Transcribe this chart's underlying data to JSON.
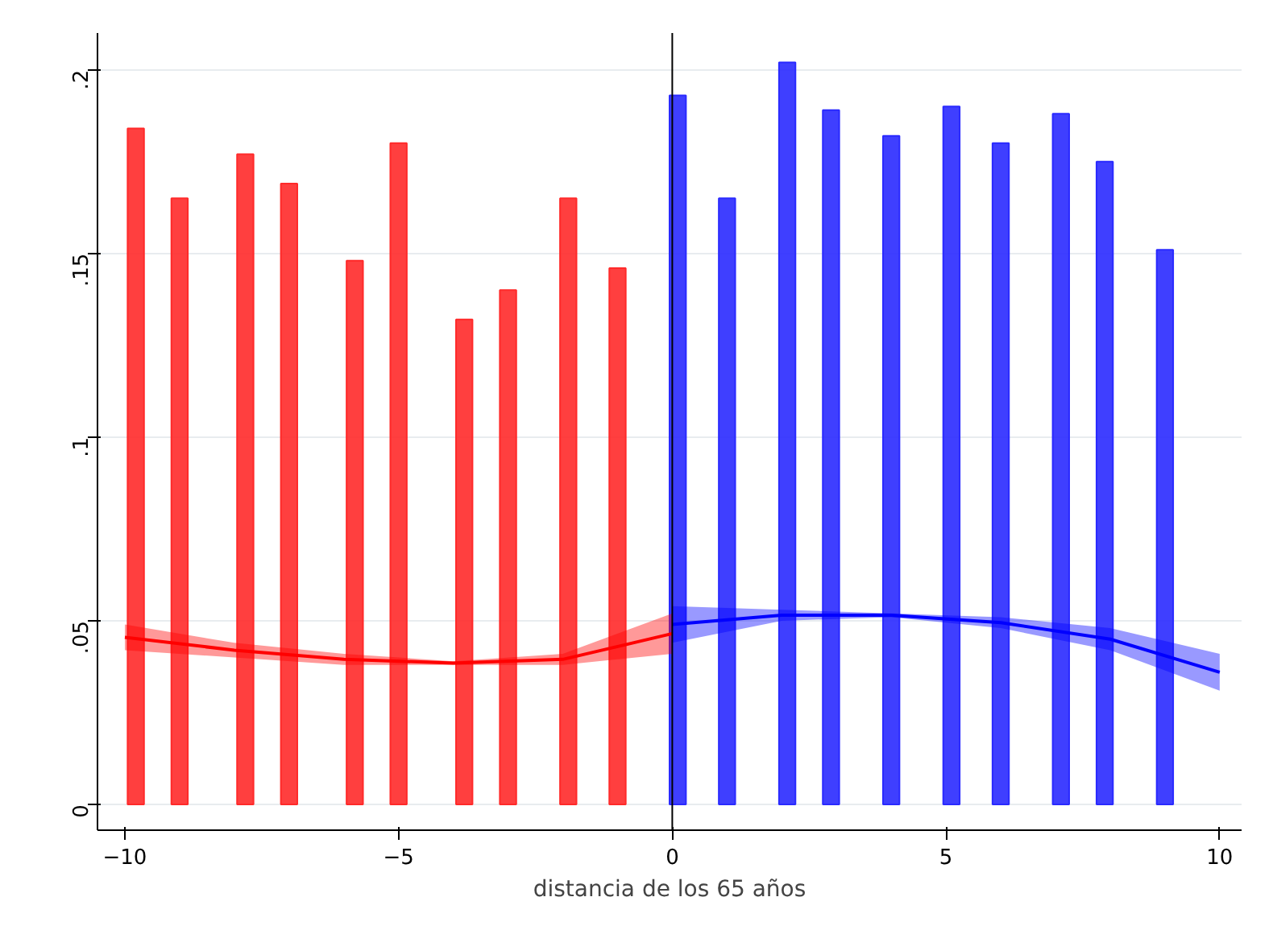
{
  "chart_data": {
    "type": "bar",
    "xlabel": "distancia de los 65 años",
    "xlim": [
      -10.5,
      10.4
    ],
    "ylim": [
      -0.007,
      0.21
    ],
    "xticks": [
      {
        "value": -10,
        "label": "−10"
      },
      {
        "value": -5,
        "label": "−5"
      },
      0,
      5,
      10
    ],
    "yticks": [
      0,
      {
        "value": 0.05,
        "label": ".05"
      },
      {
        "value": 0.1,
        "label": ".1"
      },
      {
        "value": 0.15,
        "label": ".15"
      },
      {
        "value": 0.2,
        "label": ".2"
      }
    ],
    "grid": "y",
    "ref_lines": [
      {
        "axis": "x",
        "value": 0,
        "color": "#000000"
      }
    ],
    "series": [
      {
        "color": "#ff2a2a",
        "x": [
          -9.8,
          -9.0,
          -7.8,
          -7.0,
          -5.8,
          -5.0,
          -3.8,
          -3.0,
          -1.9,
          -1.0
        ],
        "values": [
          0.184,
          0.165,
          0.177,
          0.169,
          0.148,
          0.18,
          0.132,
          0.14,
          0.165,
          0.146
        ]
      },
      {
        "color": "#2a2aff",
        "x": [
          0.1,
          1.0,
          2.1,
          2.9,
          4.0,
          5.1,
          6.0,
          7.1,
          7.9,
          9.0
        ],
        "values": [
          0.193,
          0.165,
          0.202,
          0.189,
          0.182,
          0.19,
          0.18,
          0.188,
          0.175,
          0.151
        ]
      },
      {
        "type": "line",
        "color": "#ff0000",
        "x": [
          -10,
          -8,
          -6,
          -4,
          -2,
          0
        ],
        "values": [
          0.0455,
          0.042,
          0.0395,
          0.0385,
          0.0395,
          0.0465
        ],
        "lower": [
          0.042,
          0.04,
          0.038,
          0.038,
          0.038,
          0.041
        ],
        "upper": [
          0.049,
          0.044,
          0.041,
          0.039,
          0.041,
          0.052
        ]
      },
      {
        "type": "line",
        "color": "#0000ff",
        "x": [
          0,
          2,
          4,
          6,
          8,
          10
        ],
        "values": [
          0.049,
          0.0515,
          0.0515,
          0.0495,
          0.045,
          0.036
        ],
        "lower": [
          0.044,
          0.05,
          0.051,
          0.048,
          0.042,
          0.031
        ],
        "upper": [
          0.054,
          0.053,
          0.052,
          0.051,
          0.048,
          0.041
        ]
      }
    ]
  }
}
